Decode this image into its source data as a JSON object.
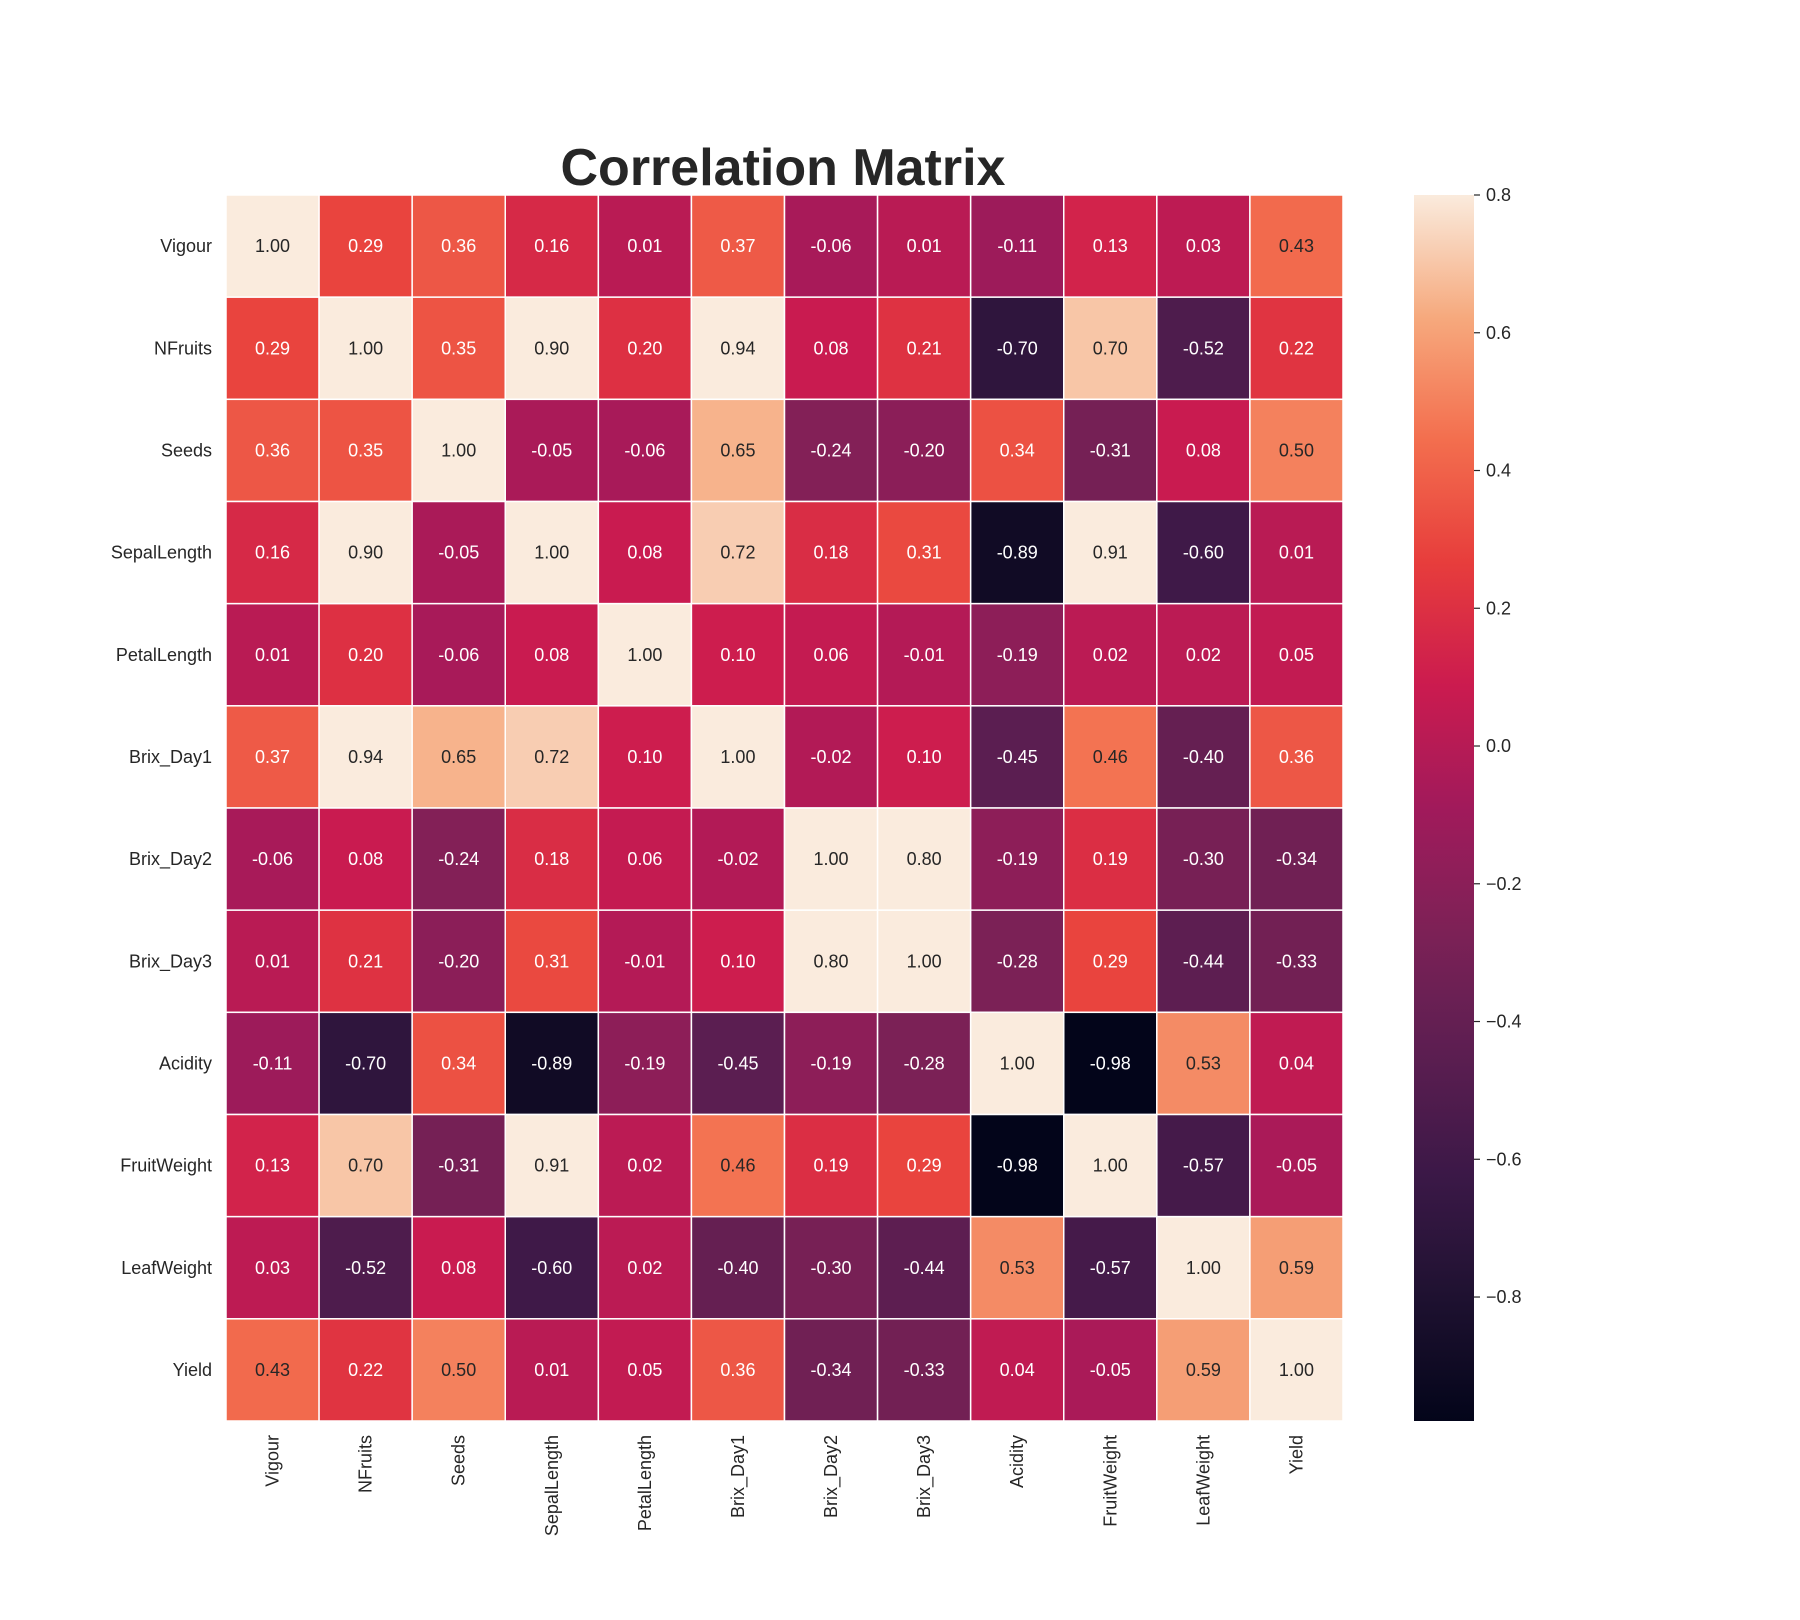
{
  "chart_data": {
    "type": "heatmap",
    "title": "Correlation Matrix",
    "rows": [
      "Vigour",
      "NFruits",
      "Seeds",
      "SepalLength",
      "PetalLength",
      "Brix_Day1",
      "Brix_Day2",
      "Brix_Day3",
      "Acidity",
      "FruitWeight",
      "LeafWeight",
      "Yield"
    ],
    "columns": [
      "Vigour",
      "NFruits",
      "Seeds",
      "SepalLength",
      "PetalLength",
      "Brix_Day1",
      "Brix_Day2",
      "Brix_Day3",
      "Acidity",
      "FruitWeight",
      "LeafWeight",
      "Yield"
    ],
    "values": [
      [
        1.0,
        0.29,
        0.36,
        0.16,
        0.01,
        0.37,
        -0.06,
        0.01,
        -0.11,
        0.13,
        0.03,
        0.43
      ],
      [
        0.29,
        1.0,
        0.35,
        0.9,
        0.2,
        0.94,
        0.08,
        0.21,
        -0.7,
        0.7,
        -0.52,
        0.22
      ],
      [
        0.36,
        0.35,
        1.0,
        -0.05,
        -0.06,
        0.65,
        -0.24,
        -0.2,
        0.34,
        -0.31,
        0.08,
        0.5
      ],
      [
        0.16,
        0.9,
        -0.05,
        1.0,
        0.08,
        0.72,
        0.18,
        0.31,
        -0.89,
        0.91,
        -0.6,
        0.01
      ],
      [
        0.01,
        0.2,
        -0.06,
        0.08,
        1.0,
        0.1,
        0.06,
        -0.01,
        -0.19,
        0.02,
        0.02,
        0.05
      ],
      [
        0.37,
        0.94,
        0.65,
        0.72,
        0.1,
        1.0,
        -0.02,
        0.1,
        -0.45,
        0.46,
        -0.4,
        0.36
      ],
      [
        -0.06,
        0.08,
        -0.24,
        0.18,
        0.06,
        -0.02,
        1.0,
        0.8,
        -0.19,
        0.19,
        -0.3,
        -0.34
      ],
      [
        0.01,
        0.21,
        -0.2,
        0.31,
        -0.01,
        0.1,
        0.8,
        1.0,
        -0.28,
        0.29,
        -0.44,
        -0.33
      ],
      [
        -0.11,
        -0.7,
        0.34,
        -0.89,
        -0.19,
        -0.45,
        -0.19,
        -0.28,
        1.0,
        -0.98,
        0.53,
        0.04
      ],
      [
        0.13,
        0.7,
        -0.31,
        0.91,
        0.02,
        0.46,
        0.19,
        0.29,
        -0.98,
        1.0,
        -0.57,
        -0.05
      ],
      [
        0.03,
        -0.52,
        0.08,
        -0.6,
        0.02,
        -0.4,
        -0.3,
        -0.44,
        0.53,
        -0.57,
        1.0,
        0.59
      ],
      [
        0.43,
        0.22,
        0.5,
        0.01,
        0.05,
        0.36,
        -0.34,
        -0.33,
        0.04,
        -0.05,
        0.59,
        1.0
      ]
    ],
    "value_format": "0.00",
    "colormap": "rocket",
    "vmin": -0.98,
    "vmax": 0.8,
    "colorbar": {
      "ticks": [
        0.8,
        0.6,
        0.4,
        0.2,
        0.0,
        -0.2,
        -0.4,
        -0.6,
        -0.8
      ],
      "tick_labels": [
        "0.8",
        "0.6",
        "0.4",
        "0.2",
        "0.0",
        "−0.2",
        "−0.4",
        "−0.6",
        "−0.8"
      ]
    },
    "cell_border_color": "#ffffff",
    "x_label_rotation": "vertical",
    "legend": "colorbar-right"
  }
}
